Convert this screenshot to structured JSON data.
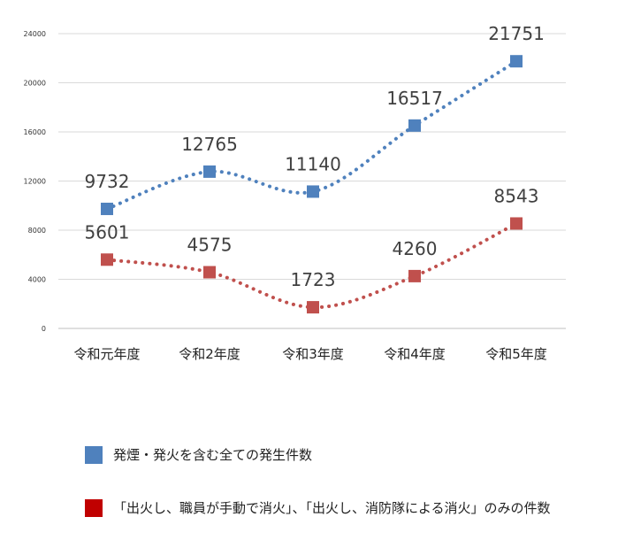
{
  "chart_data": {
    "type": "line",
    "title": "",
    "xlabel": "",
    "ylabel": "",
    "categories": [
      "令和元年度",
      "令和2年度",
      "令和3年度",
      "令和4年度",
      "令和5年度"
    ],
    "ylim": [
      0,
      24000
    ],
    "yticks": [
      "0",
      "4000",
      "8000",
      "12000",
      "16000",
      "20000",
      "24000"
    ],
    "grid": true,
    "legend_position": "bottom",
    "series": [
      {
        "name": "発煙・発火を含む全ての発生件数",
        "values": [
          9732,
          12765,
          11140,
          16517,
          21751
        ],
        "labels": [
          "9732",
          "12765",
          "11140",
          "16517",
          "21751"
        ],
        "color": "#4f81bd"
      },
      {
        "name": "「出火し、職員が手動で消火」、「出火し、消防隊による消火」のみの件数",
        "values": [
          5601,
          4575,
          1723,
          4260,
          8543
        ],
        "labels": [
          "5601",
          "4575",
          "1723",
          "4260",
          "8543"
        ],
        "color": "#c0504d"
      }
    ]
  },
  "legend": {
    "items": [
      {
        "label": "発煙・発火を含む全ての発生件数",
        "color": "#4f81bd"
      },
      {
        "label": "「出火し、職員が手動で消火」、「出火し、消防隊による消火」のみの件数",
        "color": "#c00000"
      }
    ]
  }
}
